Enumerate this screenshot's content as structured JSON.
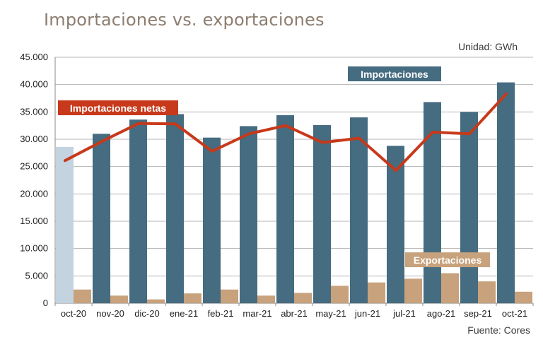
{
  "header": {
    "title": "Importaciones vs. exportaciones",
    "unit": "Unidad: GWh",
    "source": "Fuente: Cores"
  },
  "chart_data": {
    "type": "bar",
    "categories": [
      "oct-20",
      "nov-20",
      "dic-20",
      "ene-21",
      "feb-21",
      "mar-21",
      "abr-21",
      "may-21",
      "jun-21",
      "jul-21",
      "ago-21",
      "sep-21",
      "oct-21"
    ],
    "series": [
      {
        "name": "Importaciones",
        "type": "bar",
        "color": "#456c80",
        "first_color": "#c3d3df",
        "values": [
          28600,
          31000,
          33600,
          34600,
          30300,
          32400,
          34400,
          32600,
          34000,
          28800,
          36800,
          35000,
          40400
        ]
      },
      {
        "name": "Exportaciones",
        "type": "bar",
        "color": "#c8a27c",
        "values": [
          2500,
          1400,
          700,
          1800,
          2500,
          1400,
          1900,
          3200,
          3800,
          4500,
          5500,
          4000,
          2100
        ]
      },
      {
        "name": "Importaciones netas",
        "type": "line",
        "color": "#c7391a",
        "values": [
          26100,
          29600,
          32900,
          32800,
          27800,
          31000,
          32500,
          29400,
          30200,
          24300,
          31300,
          31000,
          38300
        ]
      }
    ],
    "ylim": [
      0,
      45000
    ],
    "yticks": [
      0,
      5000,
      10000,
      15000,
      20000,
      25000,
      30000,
      35000,
      40000,
      45000
    ],
    "ytick_labels": [
      "0",
      "5.000",
      "10.000",
      "15.000",
      "20.000",
      "25.000",
      "30.000",
      "35.000",
      "40.000",
      "45.000"
    ],
    "grid": true,
    "legend": "inline labels"
  }
}
